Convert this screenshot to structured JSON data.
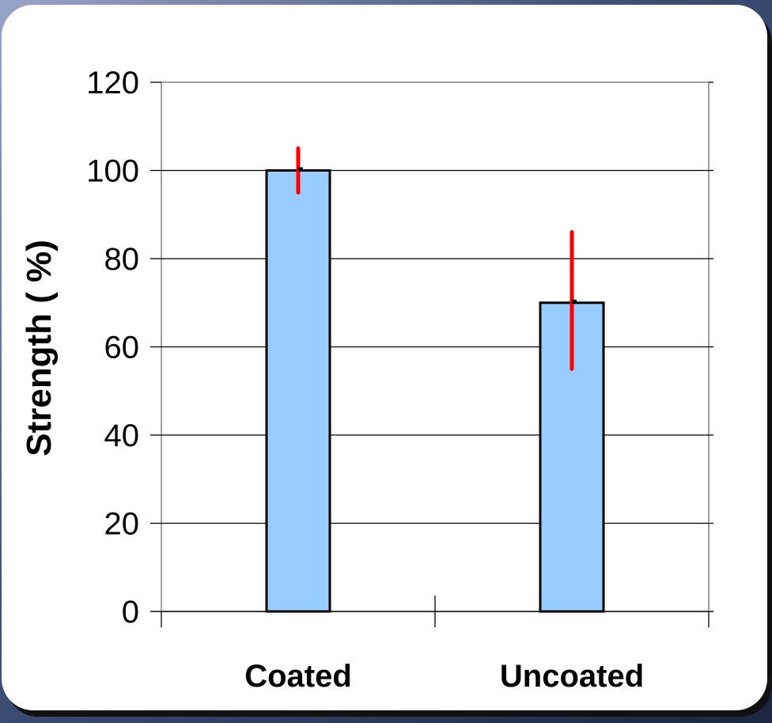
{
  "chart_data": {
    "type": "bar",
    "title": "",
    "xlabel": "",
    "ylabel": "Strength ( %)",
    "ylim": [
      0,
      120
    ],
    "yticks": [
      0,
      20,
      40,
      60,
      80,
      100,
      120
    ],
    "categories": [
      "Coated",
      "Uncoated"
    ],
    "values": [
      100,
      70
    ],
    "error_high": [
      105,
      86
    ],
    "error_low": [
      95,
      55
    ],
    "grid": true,
    "colors": {
      "bar_fill": "#99ccff",
      "bar_stroke": "#000000",
      "error_bar": "#ff0000",
      "grid": "#000000",
      "plot_border": "#a0a0a0"
    }
  }
}
